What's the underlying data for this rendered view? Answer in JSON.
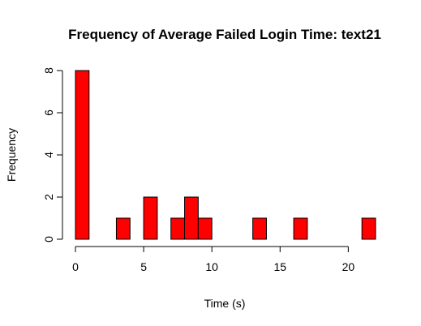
{
  "chart_data": {
    "type": "bar",
    "title": "Frequency of Average Failed Login Time: text21",
    "xlabel": "Time (s)",
    "ylabel": "Frequency",
    "bin_width": 1,
    "bins": [
      {
        "start": 0,
        "end": 1,
        "count": 8
      },
      {
        "start": 1,
        "end": 2,
        "count": 0
      },
      {
        "start": 2,
        "end": 3,
        "count": 0
      },
      {
        "start": 3,
        "end": 4,
        "count": 1
      },
      {
        "start": 4,
        "end": 5,
        "count": 0
      },
      {
        "start": 5,
        "end": 6,
        "count": 2
      },
      {
        "start": 6,
        "end": 7,
        "count": 0
      },
      {
        "start": 7,
        "end": 8,
        "count": 1
      },
      {
        "start": 8,
        "end": 9,
        "count": 2
      },
      {
        "start": 9,
        "end": 10,
        "count": 1
      },
      {
        "start": 10,
        "end": 11,
        "count": 0
      },
      {
        "start": 11,
        "end": 12,
        "count": 0
      },
      {
        "start": 12,
        "end": 13,
        "count": 0
      },
      {
        "start": 13,
        "end": 14,
        "count": 1
      },
      {
        "start": 14,
        "end": 15,
        "count": 0
      },
      {
        "start": 15,
        "end": 16,
        "count": 0
      },
      {
        "start": 16,
        "end": 17,
        "count": 1
      },
      {
        "start": 17,
        "end": 18,
        "count": 0
      },
      {
        "start": 18,
        "end": 19,
        "count": 0
      },
      {
        "start": 19,
        "end": 20,
        "count": 0
      },
      {
        "start": 20,
        "end": 21,
        "count": 0
      },
      {
        "start": 21,
        "end": 22,
        "count": 1
      }
    ],
    "xticks": [
      0,
      5,
      10,
      15,
      20
    ],
    "yticks": [
      0,
      2,
      4,
      6,
      8
    ],
    "xlim": [
      0,
      22
    ],
    "ylim": [
      0,
      8
    ],
    "bar_color": "#ff0000",
    "grid": false,
    "legend": "none"
  }
}
